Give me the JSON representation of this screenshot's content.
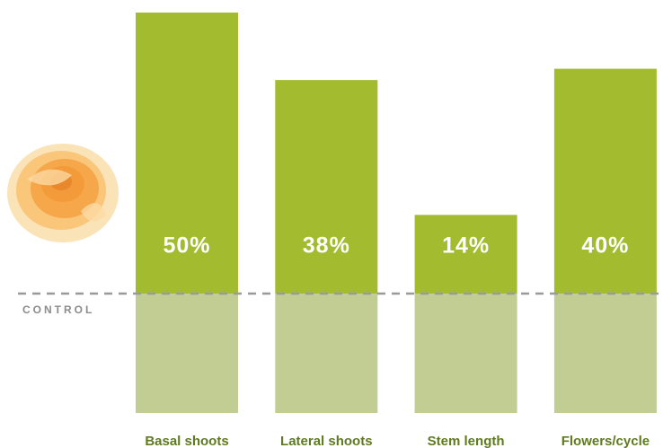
{
  "chart_data": {
    "type": "bar",
    "categories": [
      "Basal shoots",
      "Lateral shoots",
      "Stem length",
      "Flowers/cycle"
    ],
    "values": [
      50,
      38,
      14,
      40
    ],
    "value_labels": [
      "50%",
      "38%",
      "14%",
      "40%"
    ],
    "baseline_label": "CONTROL",
    "color": "#a3bc2f",
    "baseline_color": "#c1cd93"
  }
}
